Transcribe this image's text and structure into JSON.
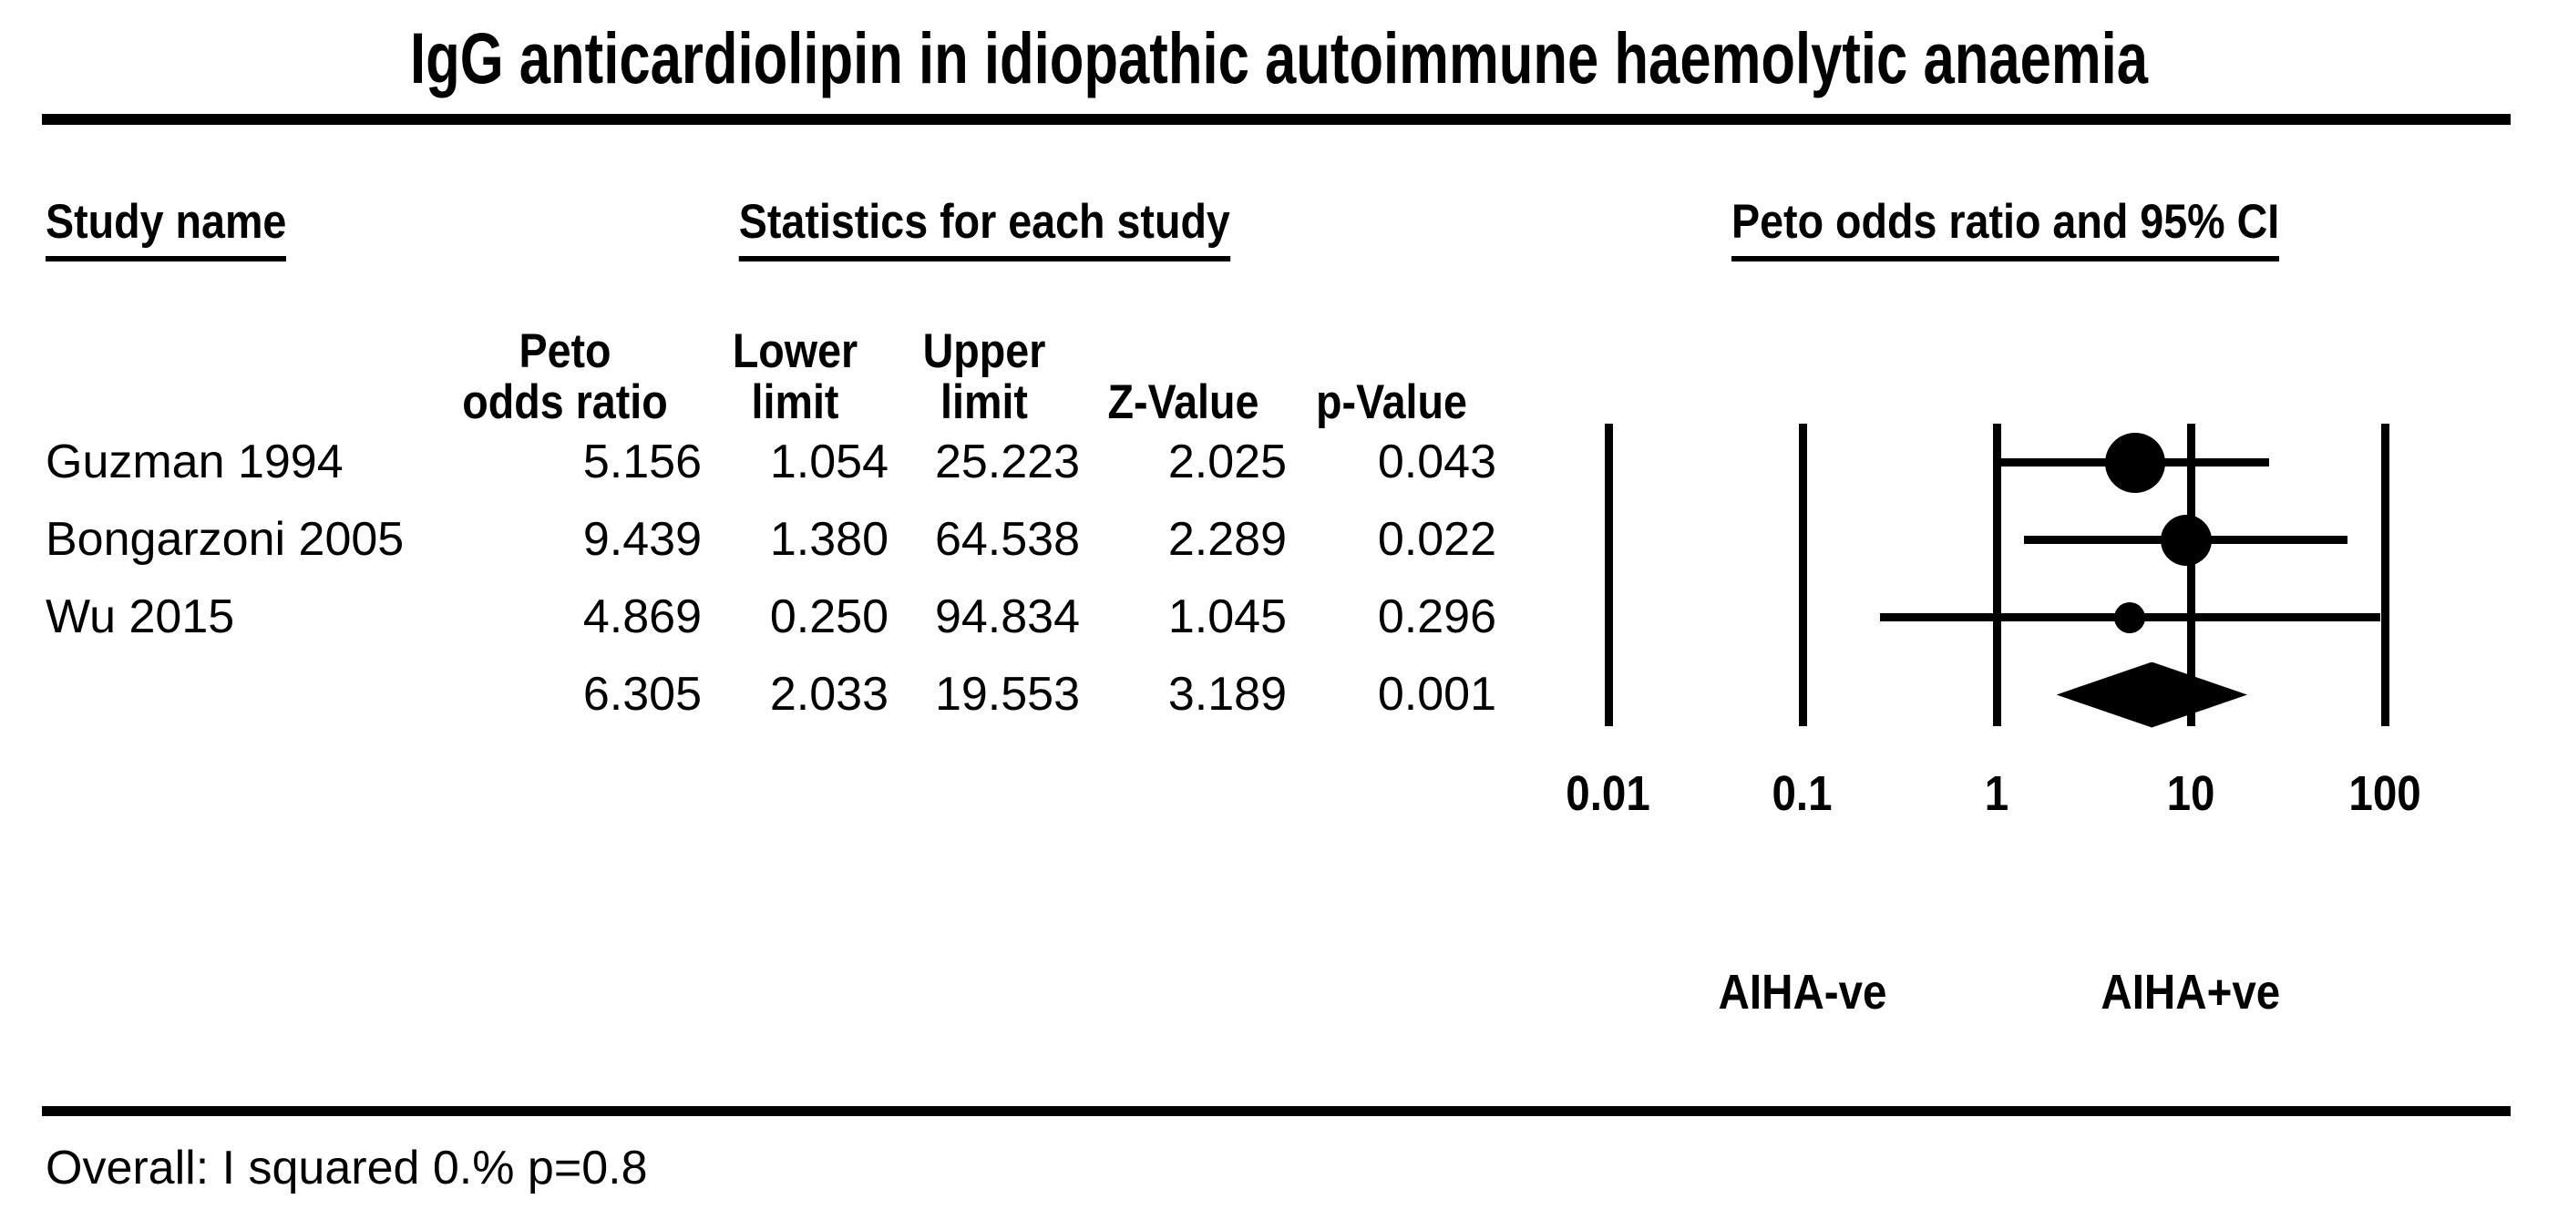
{
  "title": "IgG anticardiolipin in idiopathic autoimmune haemolytic anaemia",
  "table": {
    "section_headers": {
      "study": "Study name",
      "statistics": "Statistics for each study",
      "plot": "Peto odds ratio and 95% CI"
    },
    "column_headers": {
      "peto_line1": "Peto",
      "peto_line2": "odds ratio",
      "lower_line1": "Lower",
      "lower_line2": "limit",
      "upper_line1": "Upper",
      "upper_line2": "limit",
      "z": "Z-Value",
      "p": "p-Value"
    }
  },
  "chart_data": {
    "type": "forest",
    "x_scale": "log10",
    "x_range": [
      0.01,
      100
    ],
    "x_ticks": [
      "0.01",
      "0.1",
      "1",
      "10",
      "100"
    ],
    "effect_measure": "Peto odds ratio",
    "studies": [
      {
        "name": "Guzman 1994",
        "peto_odds_ratio": "5.156",
        "lower_limit": "1.054",
        "upper_limit": "25.223",
        "z_value": "2.025",
        "p_value": "0.043",
        "marker_radius_px": 33
      },
      {
        "name": "Bongarzoni 2005",
        "peto_odds_ratio": "9.439",
        "lower_limit": "1.380",
        "upper_limit": "64.538",
        "z_value": "2.289",
        "p_value": "0.022",
        "marker_radius_px": 28
      },
      {
        "name": "Wu 2015",
        "peto_odds_ratio": "4.869",
        "lower_limit": "0.250",
        "upper_limit": "94.834",
        "z_value": "1.045",
        "p_value": "0.296",
        "marker_radius_px": 17
      }
    ],
    "overall": {
      "name": "",
      "peto_odds_ratio": "6.305",
      "lower_limit": "2.033",
      "upper_limit": "19.553",
      "z_value": "3.189",
      "p_value": "0.001"
    },
    "direction_labels": {
      "left": "AIHA-ve",
      "right": "AIHA+ve"
    },
    "footnote": "Overall: I squared 0.% p=0.8",
    "colors": {
      "ink": "#000000",
      "background": "#ffffff"
    }
  }
}
